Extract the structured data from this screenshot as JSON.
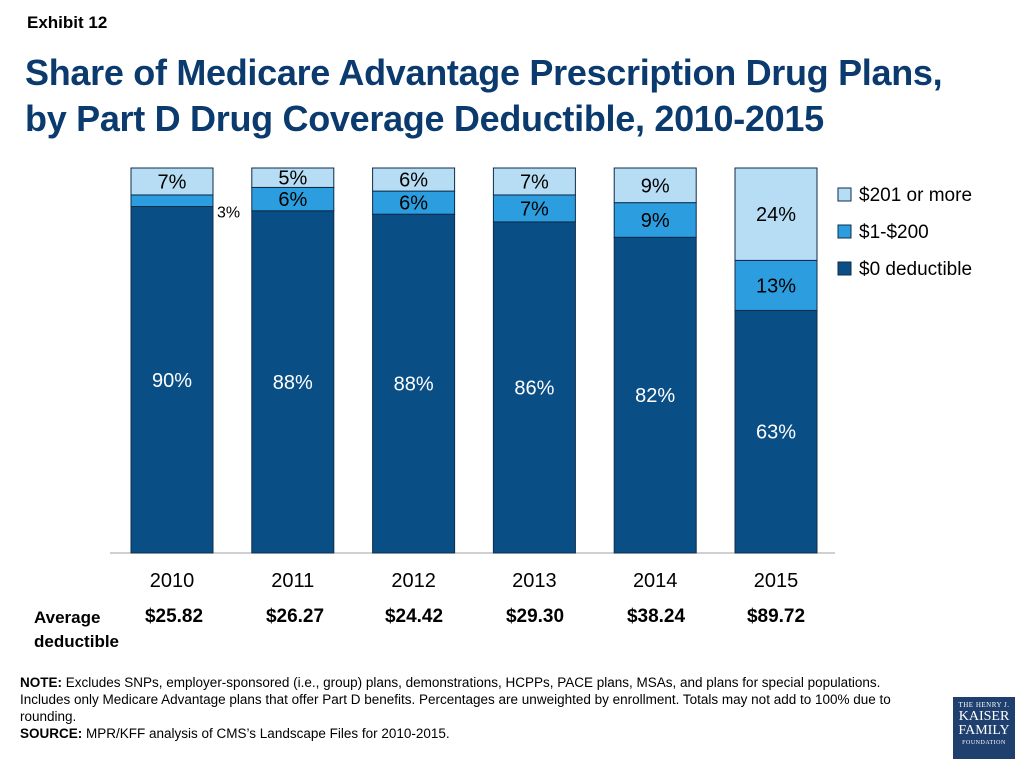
{
  "exhibit_label": "Exhibit 12",
  "title_lines": [
    "Share of Medicare Advantage Prescription Drug Plans,",
    "by Part D Drug Coverage Deductible, 2010-2015"
  ],
  "colors": {
    "zero": "#0a4e86",
    "low": "#2c9ee0",
    "high": "#b7ddf4",
    "outline": "#0d2c4a",
    "title": "#0b3a6e"
  },
  "chart_data": {
    "type": "bar",
    "stacked": true,
    "categories": [
      "2010",
      "2011",
      "2012",
      "2013",
      "2014",
      "2015"
    ],
    "series": [
      {
        "name": "$0 deductible",
        "values": [
          90,
          88,
          88,
          86,
          82,
          63
        ],
        "labels": [
          "90%",
          "88%",
          "88%",
          "86%",
          "82%",
          "63%"
        ]
      },
      {
        "name": "$1-$200",
        "values": [
          3,
          6,
          6,
          7,
          9,
          13
        ],
        "labels": [
          "3%",
          "6%",
          "6%",
          "7%",
          "9%",
          "13%"
        ]
      },
      {
        "name": "$201 or more",
        "values": [
          7,
          5,
          6,
          7,
          9,
          24
        ],
        "labels": [
          "7%",
          "5%",
          "6%",
          "7%",
          "9%",
          "24%"
        ]
      }
    ],
    "ylim": [
      0,
      100
    ],
    "legend_position": "right",
    "legend_order": [
      "$201 or more",
      "$1-$200",
      "$0 deductible"
    ],
    "grid": false
  },
  "average_deductible": {
    "label_lines": [
      "Average",
      "deductible"
    ],
    "values": [
      "$25.82",
      "$26.27",
      "$24.42",
      "$29.30",
      "$38.24",
      "$89.72"
    ]
  },
  "notes": {
    "note_label": "NOTE:",
    "note_text": " Excludes SNPs, employer-sponsored (i.e., group) plans, demonstrations, HCPPs, PACE plans, MSAs, and plans for special populations.  Includes only Medicare Advantage plans that offer Part D benefits. Percentages are unweighted by enrollment. Totals may not add to 100% due to rounding.",
    "source_label": "SOURCE:",
    "source_text": "  MPR/KFF analysis of CMS’s Landscape Files for 2010-2015."
  },
  "logo": {
    "line1": "THE HENRY J.",
    "line2": "KAISER",
    "line3": "FAMILY",
    "line4": "FOUNDATION"
  }
}
